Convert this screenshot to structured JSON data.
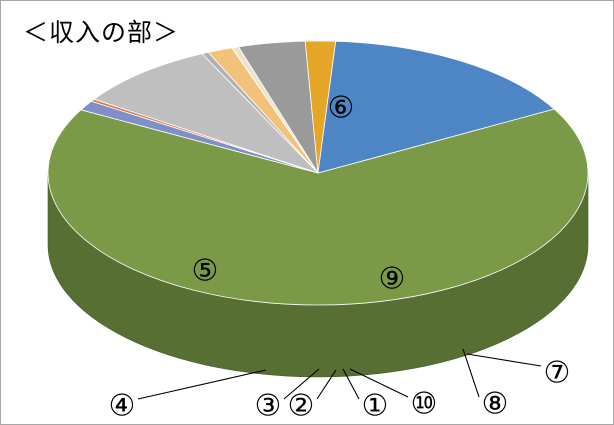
{
  "chart_data": {
    "type": "pie",
    "title": "＜収入の部＞",
    "slices": [
      {
        "label": "⑥",
        "value": 66.0,
        "color": "#7a9a47"
      },
      {
        "label": "⑦",
        "value": 1.2,
        "color": "#7f8fc8"
      },
      {
        "label": "⑧",
        "value": 0.3,
        "color": "#e07b48"
      },
      {
        "label": "⑨",
        "value": 8.5,
        "color": "#bfbfbf"
      },
      {
        "label": "⑩",
        "value": 0.4,
        "color": "#b0b0b0"
      },
      {
        "label": "①",
        "value": 1.5,
        "color": "#f2c27a"
      },
      {
        "label": "②",
        "value": 0.4,
        "color": "#e9e4cc"
      },
      {
        "label": "③",
        "value": 4.0,
        "color": "#9a9a9a"
      },
      {
        "label": "④",
        "value": 1.8,
        "color": "#e5a526"
      },
      {
        "label": "⑤",
        "value": 15.9,
        "color": "#4e86c5"
      }
    ],
    "legend": "none"
  }
}
